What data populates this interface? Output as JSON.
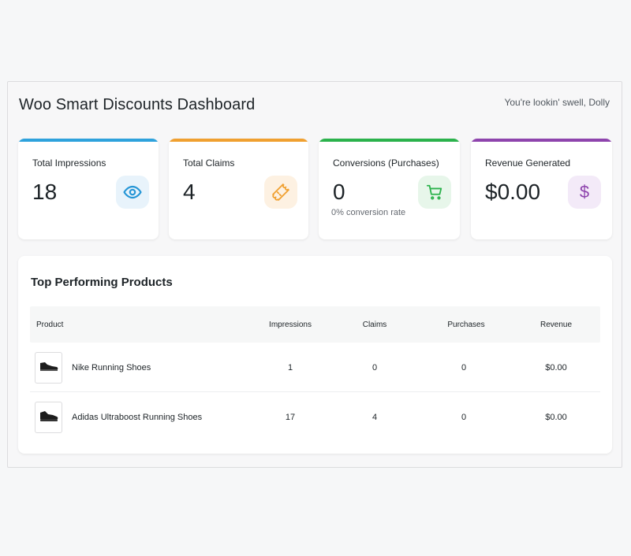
{
  "header": {
    "title": "Woo Smart Discounts Dashboard",
    "greeting": "You're lookin' swell, Dolly"
  },
  "stats": [
    {
      "label": "Total Impressions",
      "value": "18",
      "sub": "",
      "icon": "eye-icon",
      "accent": "#2ea2dc",
      "icon_bg": "#e8f3fb",
      "icon_color": "#2696d6"
    },
    {
      "label": "Total Claims",
      "value": "4",
      "sub": "",
      "icon": "ticket-icon",
      "accent": "#f0a030",
      "icon_bg": "#fdf1e2",
      "icon_color": "#f0a030"
    },
    {
      "label": "Conversions (Purchases)",
      "value": "0",
      "sub": "0% conversion rate",
      "icon": "cart-icon",
      "accent": "#2bb24c",
      "icon_bg": "#e7f6ea",
      "icon_color": "#2bb24c"
    },
    {
      "label": "Revenue Generated",
      "value": "$0.00",
      "sub": "",
      "icon": "dollar-icon",
      "accent": "#8e44ad",
      "icon_bg": "#f3eaf8",
      "icon_color": "#8e44ad"
    }
  ],
  "products": {
    "title": "Top Performing Products",
    "columns": [
      "Product",
      "Impressions",
      "Claims",
      "Purchases",
      "Revenue"
    ],
    "rows": [
      {
        "name": "Nike Running Shoes",
        "impressions": "1",
        "claims": "0",
        "purchases": "0",
        "revenue": "$0.00",
        "thumb_icon": "shoe-icon"
      },
      {
        "name": "Adidas Ultraboost Running Shoes",
        "impressions": "17",
        "claims": "4",
        "purchases": "0",
        "revenue": "$0.00",
        "thumb_icon": "shoe-icon"
      }
    ]
  }
}
